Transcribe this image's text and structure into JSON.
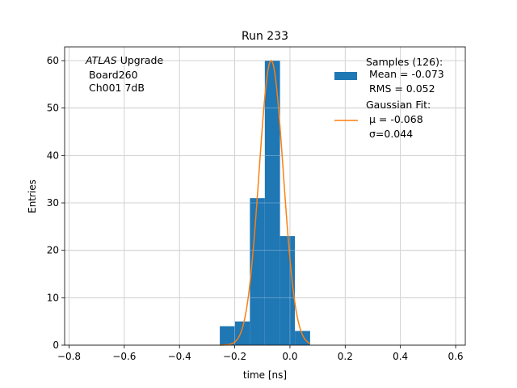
{
  "chart_data": {
    "type": "bar",
    "title": "Run 233",
    "xlabel": "time [ns]",
    "ylabel": "Entries",
    "xlim": [
      -0.816,
      0.635
    ],
    "ylim": [
      0,
      62.9
    ],
    "grid": true,
    "xticks": [
      -0.8,
      -0.6,
      -0.4,
      -0.2,
      0.0,
      0.2,
      0.4,
      0.6
    ],
    "xtick_labels": [
      "−0.8",
      "−0.6",
      "−0.4",
      "−0.2",
      "0.0",
      "0.2",
      "0.4",
      "0.6"
    ],
    "yticks": [
      0,
      10,
      20,
      30,
      40,
      50,
      60
    ],
    "ytick_labels": [
      "0",
      "10",
      "20",
      "30",
      "40",
      "50",
      "60"
    ],
    "bin_edges": [
      -0.254,
      -0.199,
      -0.145,
      -0.091,
      -0.036,
      0.018,
      0.073
    ],
    "values": [
      4,
      5,
      31,
      60,
      23,
      3
    ],
    "bar_color": "#1f77b4",
    "fit": {
      "type": "gaussian",
      "amplitude": 60,
      "mu": -0.068,
      "sigma": 0.044,
      "range": [
        -0.254,
        0.073
      ],
      "color": "#ff7f0e"
    },
    "annotation": {
      "italic": "ATLAS",
      "rest": " Upgrade",
      "line2": " Board260",
      "line3": " Ch001 7dB"
    },
    "legend": {
      "placement": "top-right",
      "samples": [
        "Samples (126):",
        " Mean = -0.073",
        " RMS = 0.052"
      ],
      "fit": [
        "Gaussian Fit:",
        " μ = -0.068",
        " σ=0.044"
      ]
    }
  }
}
